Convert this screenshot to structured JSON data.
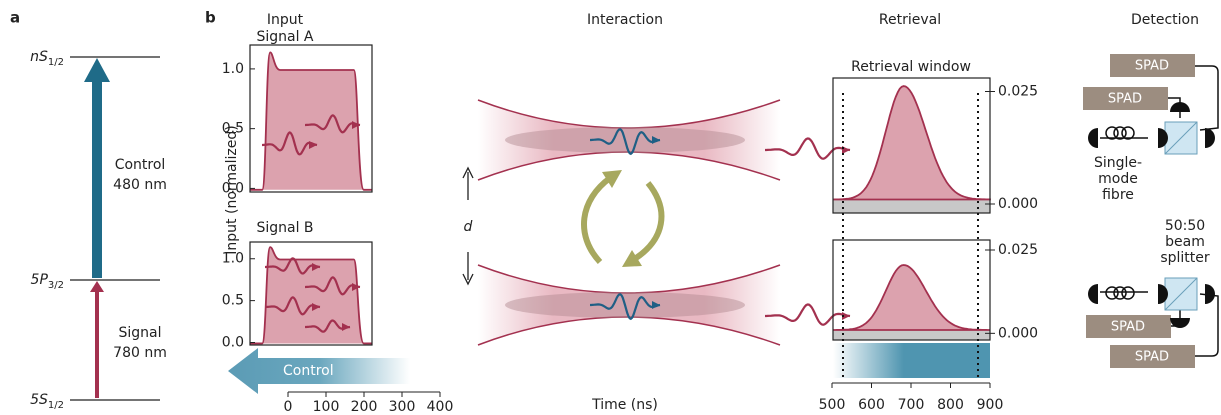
{
  "panel_a": {
    "label": "a",
    "levels": [
      {
        "state": "nS",
        "subscript": "1/2"
      },
      {
        "state": "5P",
        "subscript": "3/2"
      },
      {
        "state": "5S",
        "subscript": "1/2"
      }
    ],
    "control_label": [
      "Control",
      "480 nm"
    ],
    "signal_label": [
      "Signal",
      "780 nm"
    ]
  },
  "panel_b": {
    "label": "b",
    "columns": [
      "Input",
      "Interaction",
      "Retrieval",
      "Detection"
    ],
    "x_axis_label": "Time (ns)",
    "input": {
      "y_axis_label": "Input (normalized)",
      "plots": [
        {
          "title": "Signal A",
          "ylim": [
            -0.03,
            1.2
          ],
          "yticks": [
            {
              "value": 1,
              "label": "1.0"
            },
            {
              "value": 0.5,
              "label": "0.5"
            },
            {
              "value": 0,
              "label": "0.0"
            }
          ]
        },
        {
          "title": "Signal B",
          "ylim": [
            -0.03,
            1.2
          ],
          "yticks": [
            {
              "value": 1,
              "label": "1.0"
            },
            {
              "value": 0.5,
              "label": "0.5"
            },
            {
              "value": 0,
              "label": "0.0"
            }
          ]
        }
      ],
      "xlim": [
        0,
        400
      ],
      "xticks": [
        0,
        100,
        200,
        300,
        400
      ],
      "control_label": "Control"
    },
    "interaction": {
      "separation_label": "d"
    },
    "retrieval": {
      "window_label": "Retrieval window",
      "plots": [
        {
          "ylim": [
            -0.002,
            0.028
          ],
          "yticks": [
            0.025,
            {
              "value": 0,
              "label": "0.000"
            }
          ]
        },
        {
          "ylim": [
            -0.002,
            0.028
          ],
          "yticks": [
            0.025,
            {
              "value": 0,
              "label": "0.000"
            }
          ]
        }
      ],
      "xlim": [
        500,
        900
      ],
      "xticks": [
        500,
        600,
        700,
        800,
        900
      ]
    },
    "detection": {
      "detector_labels": [
        "SPAD",
        "SPAD",
        "SPAD",
        "SPAD"
      ],
      "fibre_label": [
        "Single-",
        "mode",
        "fibre"
      ],
      "splitter_label": [
        "50:50",
        "beam",
        "splitter"
      ]
    }
  }
}
